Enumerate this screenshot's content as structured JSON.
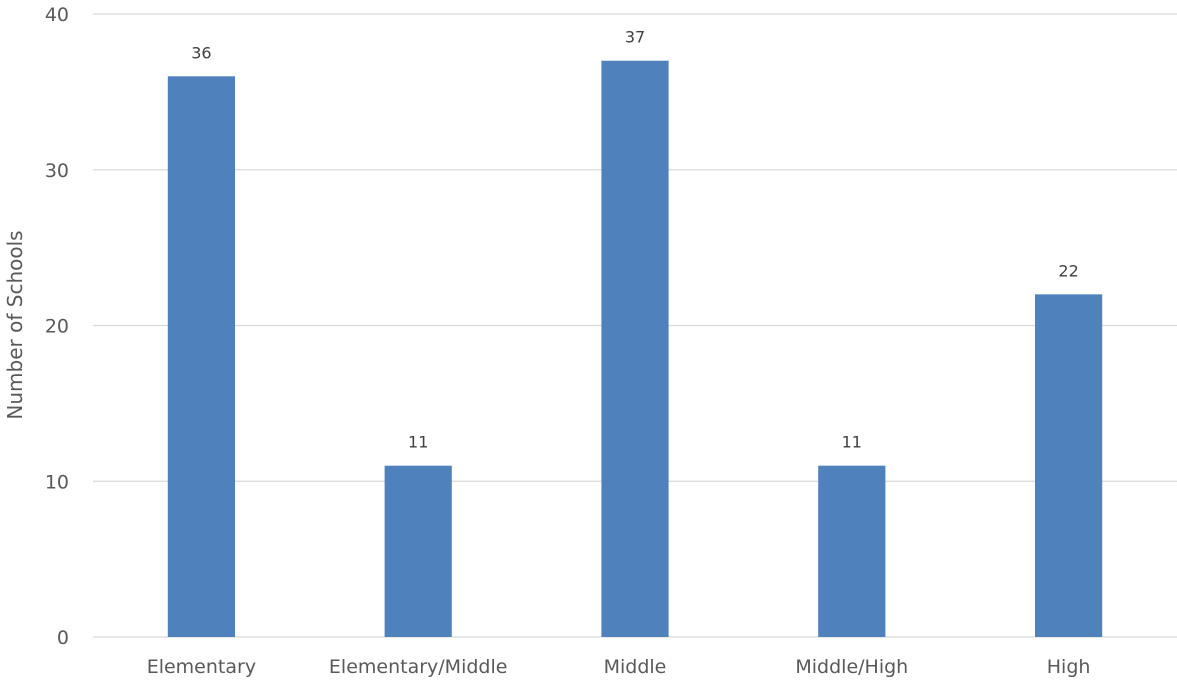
{
  "chart_data": {
    "type": "bar",
    "title": "",
    "xlabel": "",
    "ylabel": "Number of Schools",
    "categories": [
      "Elementary",
      "Elementary/Middle",
      "Middle",
      "Middle/High",
      "High"
    ],
    "values": [
      36,
      11,
      37,
      11,
      22
    ],
    "data_labels": [
      "36",
      "11",
      "37",
      "11",
      "22"
    ],
    "ylim": [
      0,
      40
    ],
    "yticks": [
      0,
      10,
      20,
      30,
      40
    ],
    "grid": true,
    "legend": "none",
    "colors": {
      "bar": "#4f81bd",
      "grid": "#d9d9d9",
      "tick_text": "#595959",
      "label_text": "#404040"
    }
  }
}
